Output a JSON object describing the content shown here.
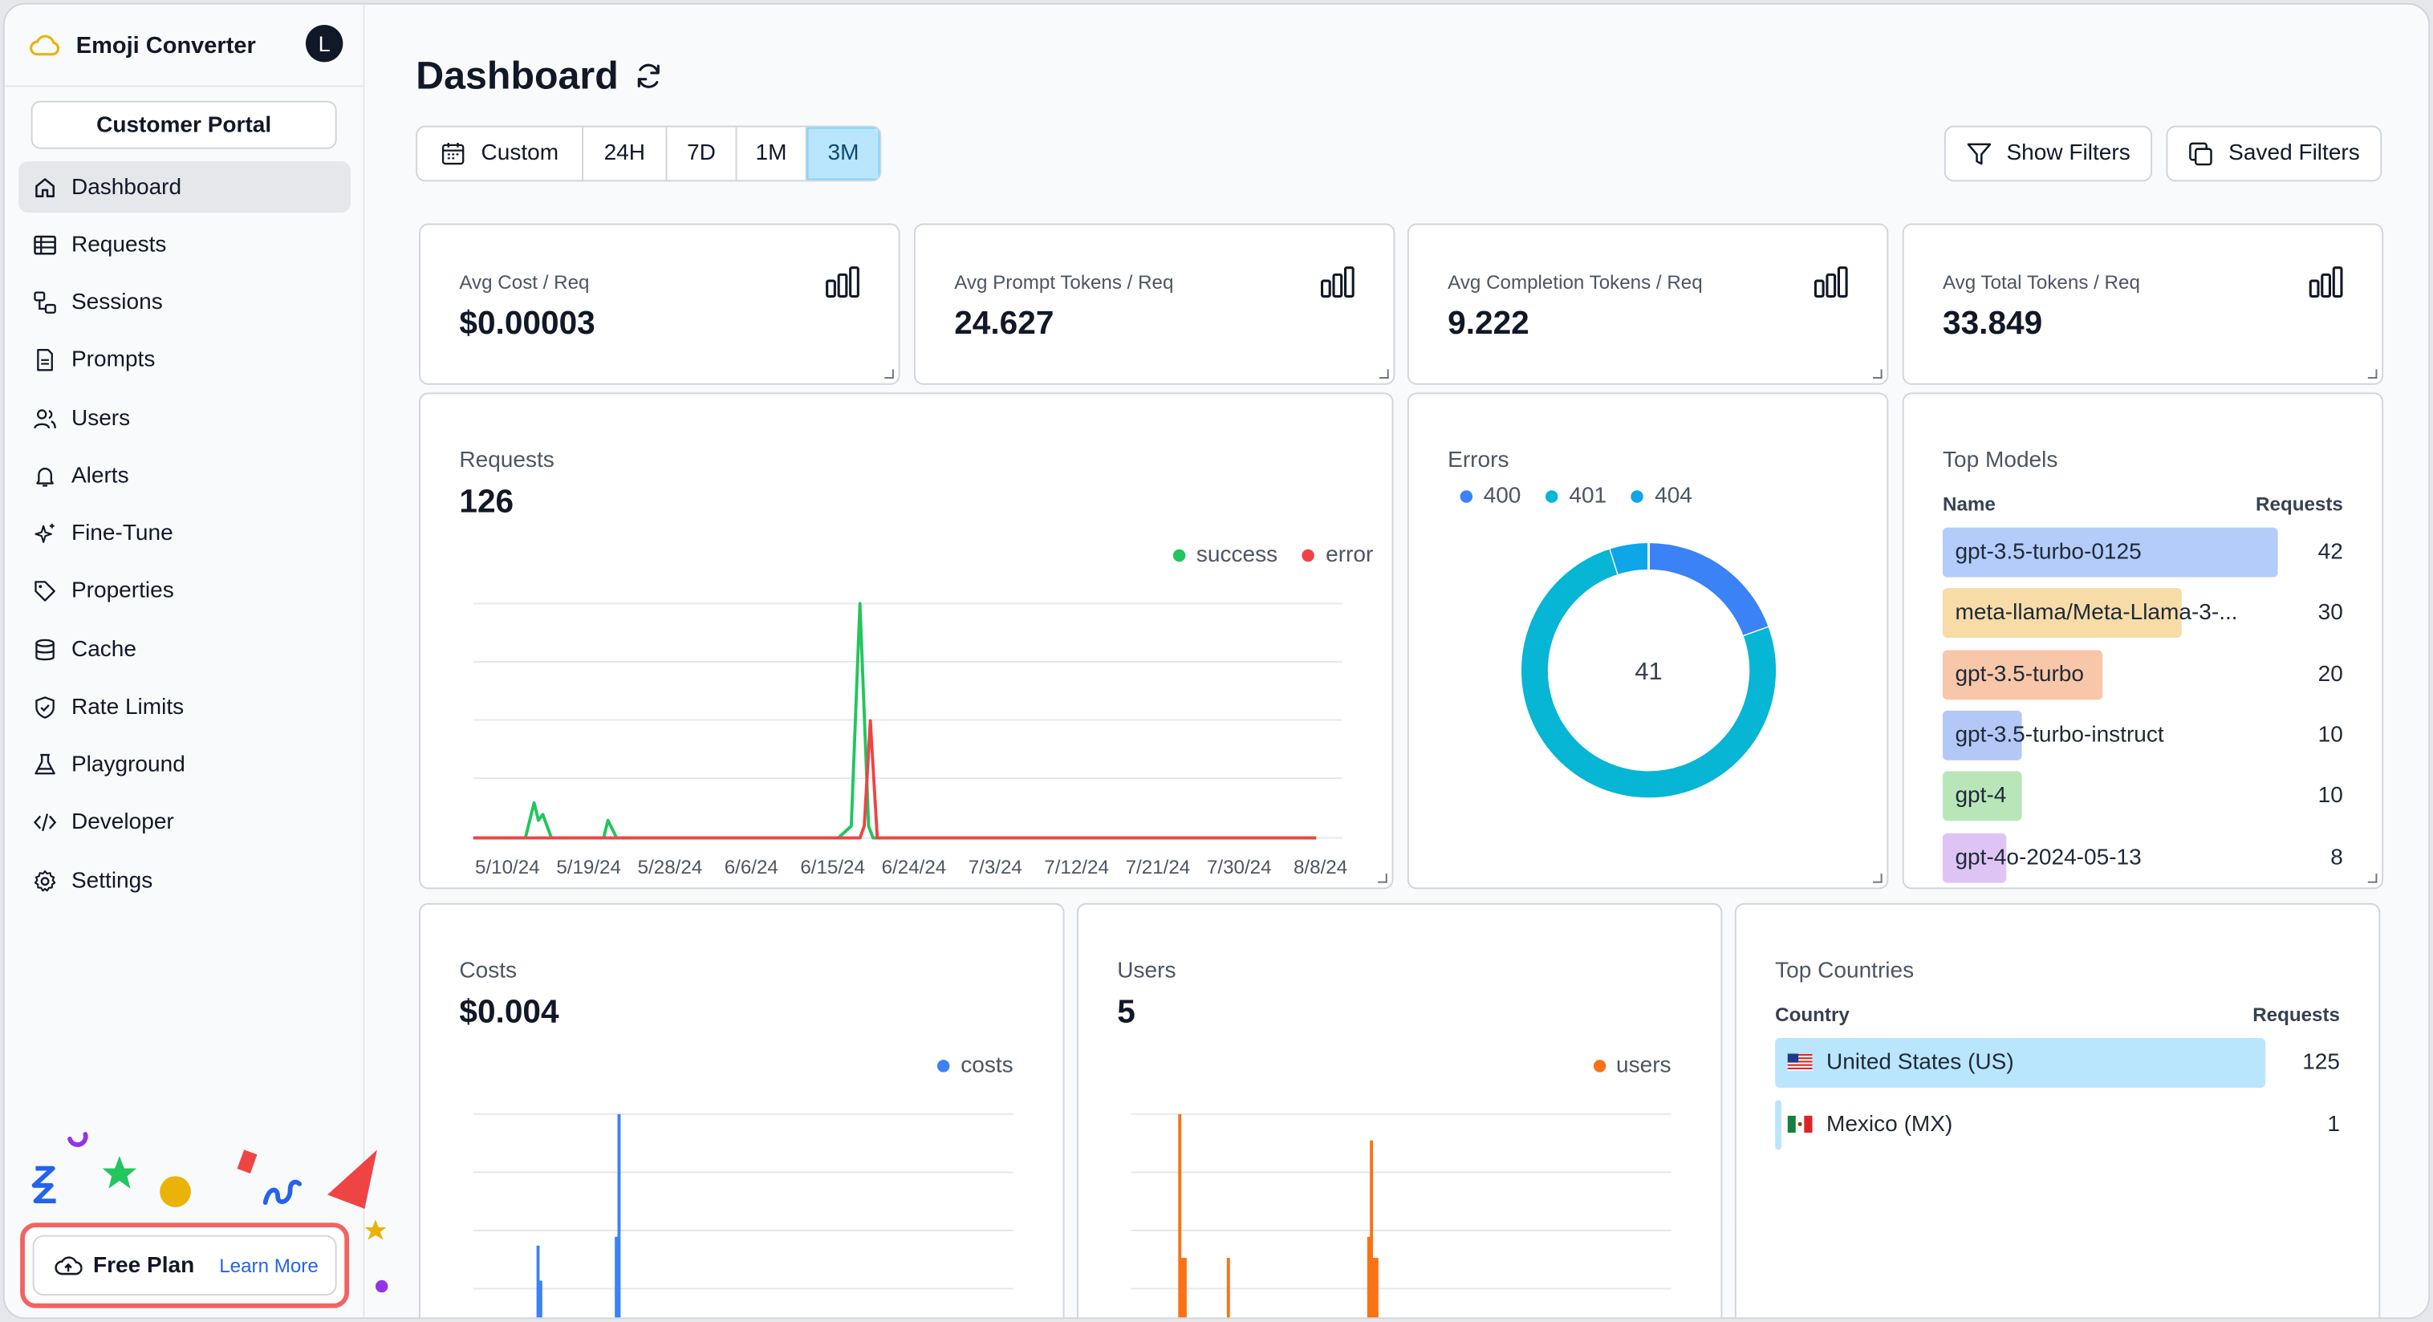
{
  "app": {
    "name": "Emoji Converter",
    "avatar_initial": "L"
  },
  "sidebar": {
    "portal_label": "Customer Portal",
    "items": [
      {
        "label": "Dashboard",
        "icon": "home-icon",
        "active": true
      },
      {
        "label": "Requests",
        "icon": "table-icon"
      },
      {
        "label": "Sessions",
        "icon": "sessions-icon"
      },
      {
        "label": "Prompts",
        "icon": "document-icon"
      },
      {
        "label": "Users",
        "icon": "users-icon"
      },
      {
        "label": "Alerts",
        "icon": "bell-icon"
      },
      {
        "label": "Fine-Tune",
        "icon": "sparkles-icon"
      },
      {
        "label": "Properties",
        "icon": "tag-icon"
      },
      {
        "label": "Cache",
        "icon": "database-icon"
      },
      {
        "label": "Rate Limits",
        "icon": "shield-icon"
      },
      {
        "label": "Playground",
        "icon": "flask-icon"
      },
      {
        "label": "Developer",
        "icon": "code-icon"
      },
      {
        "label": "Settings",
        "icon": "gear-icon"
      }
    ],
    "plan_label": "Free Plan",
    "learn_more": "Learn More"
  },
  "header": {
    "title": "Dashboard"
  },
  "time_range": {
    "custom": "Custom",
    "options": [
      "24H",
      "7D",
      "1M",
      "3M"
    ],
    "selected": "3M"
  },
  "filters": {
    "show": "Show Filters",
    "saved": "Saved Filters"
  },
  "stats": [
    {
      "label": "Avg Cost / Req",
      "value": "$0.00003"
    },
    {
      "label": "Avg Prompt Tokens / Req",
      "value": "24.627"
    },
    {
      "label": "Avg Completion Tokens / Req",
      "value": "9.222"
    },
    {
      "label": "Avg Total Tokens / Req",
      "value": "33.849"
    }
  ],
  "requests_panel": {
    "label": "Requests",
    "value": "126"
  },
  "errors_panel": {
    "label": "Errors",
    "center": "41"
  },
  "top_models": {
    "label": "Top Models",
    "col_name": "Name",
    "col_requests": "Requests",
    "rows": [
      {
        "name": "gpt-3.5-turbo-0125",
        "count": "42",
        "fraction": 1.0,
        "color": "#b3ccfa"
      },
      {
        "name": "meta-llama/Meta-Llama-3-...",
        "count": "30",
        "fraction": 0.714,
        "color": "#f7dca7"
      },
      {
        "name": "gpt-3.5-turbo",
        "count": "20",
        "fraction": 0.476,
        "color": "#f8c6a8"
      },
      {
        "name": "gpt-3.5-turbo-instruct",
        "count": "10",
        "fraction": 0.238,
        "color": "#b3c8f7"
      },
      {
        "name": "gpt-4",
        "count": "10",
        "fraction": 0.238,
        "color": "#b9e6b9"
      },
      {
        "name": "gpt-4o-2024-05-13",
        "count": "8",
        "fraction": 0.19,
        "color": "#dec4f5"
      }
    ]
  },
  "costs_panel": {
    "label": "Costs",
    "value": "$0.004"
  },
  "users_panel": {
    "label": "Users",
    "value": "5"
  },
  "top_countries": {
    "label": "Top Countries",
    "col_name": "Country",
    "col_requests": "Requests",
    "rows": [
      {
        "name": "United States (US)",
        "count": "125",
        "fraction": 1.0,
        "color": "#bae6fd"
      },
      {
        "name": "Mexico (MX)",
        "count": "1",
        "fraction": 0.008,
        "color": "#bae6fd"
      }
    ]
  },
  "chart_data": [
    {
      "type": "line",
      "title": "Requests",
      "categories": [
        "5/10/24",
        "5/19/24",
        "5/28/24",
        "6/6/24",
        "6/15/24",
        "6/24/24",
        "7/3/24",
        "7/12/24",
        "7/21/24",
        "7/30/24",
        "8/8/24"
      ],
      "series": [
        {
          "name": "success",
          "color": "#22c55e",
          "points": [
            [
              0,
              0
            ],
            [
              0.06,
              0
            ],
            [
              0.07,
              3
            ],
            [
              0.075,
              1.5
            ],
            [
              0.08,
              2
            ],
            [
              0.09,
              0
            ],
            [
              0.15,
              0
            ],
            [
              0.155,
              1.5
            ],
            [
              0.165,
              0
            ],
            [
              0.42,
              0
            ],
            [
              0.435,
              1
            ],
            [
              0.445,
              20
            ],
            [
              0.455,
              1
            ],
            [
              0.46,
              0
            ],
            [
              0.97,
              0
            ]
          ]
        },
        {
          "name": "error",
          "color": "#ef4444",
          "points": [
            [
              0,
              0
            ],
            [
              0.445,
              0
            ],
            [
              0.45,
              1
            ],
            [
              0.457,
              10
            ],
            [
              0.465,
              0
            ],
            [
              0.97,
              0
            ]
          ]
        }
      ],
      "legend": "top-right",
      "grid": true
    },
    {
      "type": "pie",
      "title": "Errors",
      "series": [
        {
          "name": "400",
          "value": 8,
          "color": "#3b82f6"
        },
        {
          "name": "401",
          "value": 31,
          "color": "#06b6d4"
        },
        {
          "name": "404",
          "value": 2,
          "color": "#0ea5e9"
        }
      ]
    },
    {
      "type": "bar",
      "title": "Costs",
      "series": [
        {
          "name": "costs",
          "color": "#3b82f6",
          "points": [
            [
              0.12,
              0.25
            ],
            [
              0.125,
              0.05
            ],
            [
              0.265,
              0.3
            ],
            [
              0.27,
              1.0
            ]
          ]
        }
      ],
      "legend": "top-right",
      "grid": true
    },
    {
      "type": "bar",
      "title": "Users",
      "series": [
        {
          "name": "users",
          "color": "#f97316",
          "points": [
            [
              0.09,
              1.0
            ],
            [
              0.095,
              0.18
            ],
            [
              0.1,
              0.18
            ],
            [
              0.18,
              0.18
            ],
            [
              0.44,
              0.3
            ],
            [
              0.445,
              0.85
            ],
            [
              0.45,
              0.18
            ],
            [
              0.455,
              0.18
            ]
          ]
        }
      ],
      "legend": "top-right",
      "grid": true
    }
  ]
}
